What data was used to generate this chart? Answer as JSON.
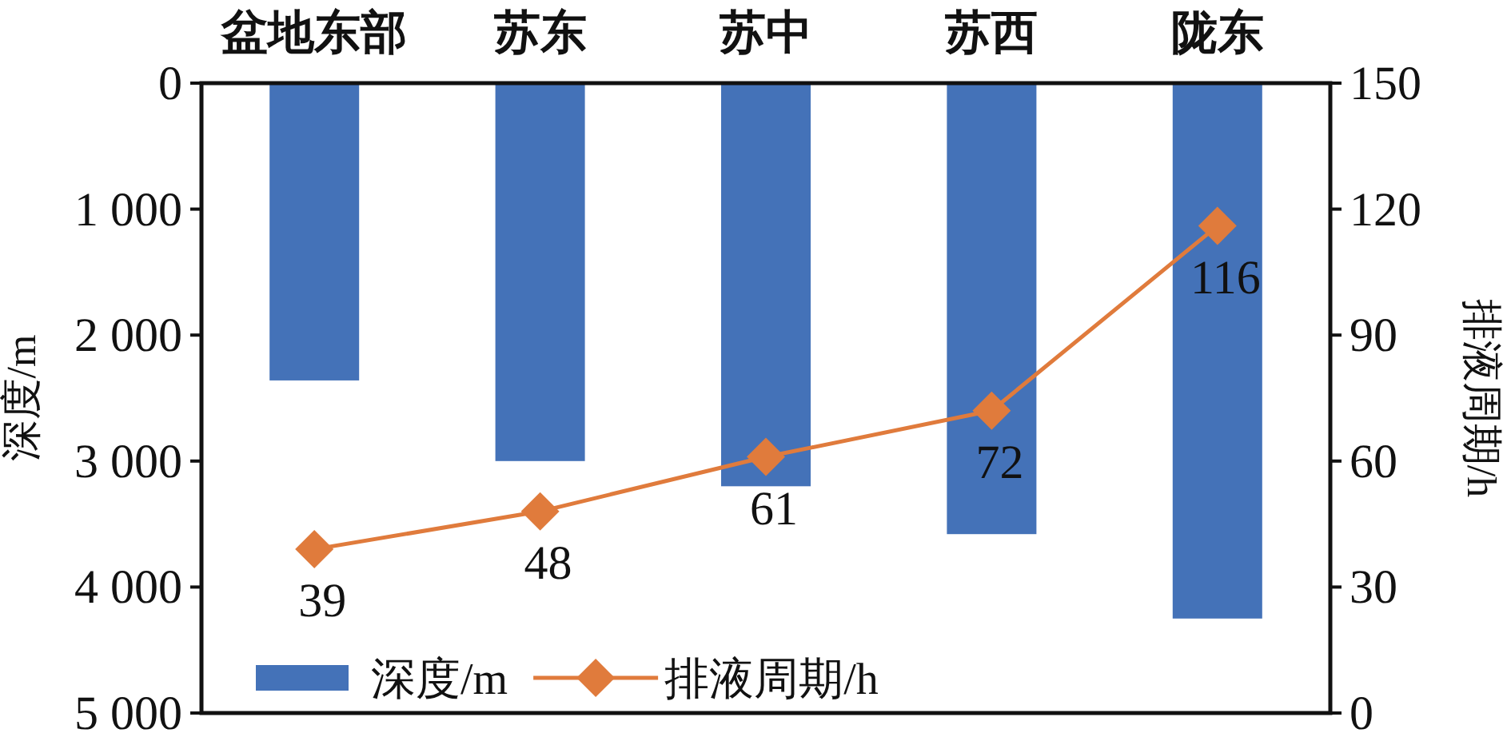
{
  "chart_data": {
    "type": "bar",
    "categories": [
      "盆地东部",
      "苏东",
      "苏中",
      "苏西",
      "陇东"
    ],
    "ylabel": "深度/m",
    "y2label": "排液周期/h",
    "ylim": [
      5000,
      0
    ],
    "yticks": [
      {
        "value": 0,
        "label": "0"
      },
      {
        "value": 1000,
        "label": "1 000"
      },
      {
        "value": 2000,
        "label": "2 000"
      },
      {
        "value": 3000,
        "label": "3 000"
      },
      {
        "value": 4000,
        "label": "4 000"
      },
      {
        "value": 5000,
        "label": "5 000"
      }
    ],
    "y2lim": [
      0,
      150
    ],
    "y2ticks": [
      0,
      30,
      60,
      90,
      120,
      150
    ],
    "series": [
      {
        "name": "深度/m",
        "color": "#4472b8",
        "values": [
          2360,
          3000,
          3200,
          3580,
          4250
        ]
      },
      {
        "name": "排液周期/h",
        "type": "line",
        "axis": "y2",
        "color": "#e07b3c",
        "marker": "diamond",
        "values": [
          39,
          48,
          61,
          72,
          116
        ],
        "value_labels": [
          "39",
          "48",
          "61",
          "72",
          "116"
        ]
      }
    ],
    "legend": "bottom",
    "grid": false
  }
}
